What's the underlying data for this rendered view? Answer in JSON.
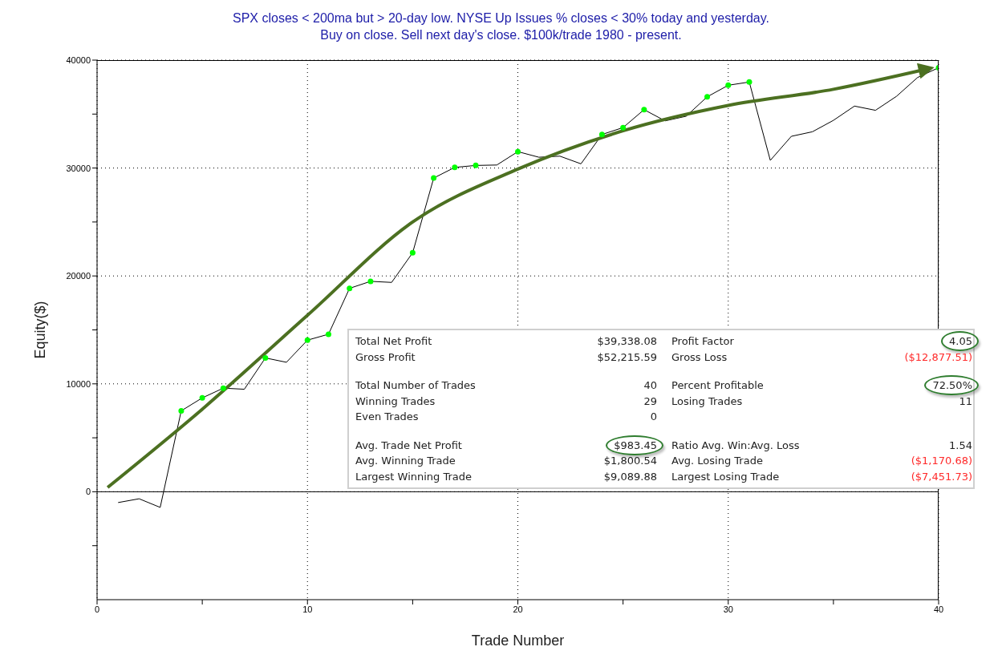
{
  "chart_data": {
    "type": "line",
    "title": "SPX closes < 200ma but > 20-day low. NYSE Up Issues % closes < 30% today and yesterday.",
    "subtitle": "Buy on close. Sell next day's close. $100k/trade 1980 - present.",
    "xlabel": "Trade Number",
    "ylabel": "Equity($)",
    "x": [
      1,
      2,
      3,
      4,
      5,
      6,
      7,
      8,
      9,
      10,
      11,
      12,
      13,
      14,
      15,
      16,
      17,
      18,
      19,
      20,
      21,
      22,
      23,
      24,
      25,
      26,
      27,
      28,
      29,
      30,
      31,
      32,
      33,
      34,
      35,
      36,
      37,
      38,
      39,
      40
    ],
    "series": [
      {
        "type": "line",
        "color": "#000000",
        "marker": "none",
        "values": [
          -1000,
          -650,
          -1450,
          7500,
          8700,
          9600,
          9500,
          12400,
          12000,
          14050,
          14600,
          18850,
          19500,
          19400,
          22150,
          29070,
          30060,
          30240,
          30280,
          31520,
          31000,
          31100,
          30390,
          33110,
          33750,
          35410,
          34370,
          34800,
          36600,
          37670,
          37970,
          30710,
          32940,
          33360,
          34420,
          35740,
          35350,
          36650,
          38390,
          39300
        ]
      },
      {
        "type": "scatter",
        "color": "#00ff00",
        "marker": "circle",
        "x": [
          4,
          5,
          6,
          8,
          10,
          11,
          12,
          13,
          15,
          16,
          17,
          18,
          20,
          24,
          25,
          26,
          29,
          30,
          31,
          40
        ],
        "values": [
          7500,
          8700,
          9600,
          12400,
          14050,
          14600,
          18850,
          19500,
          22150,
          29070,
          30060,
          30240,
          31520,
          33110,
          33750,
          35410,
          36600,
          37670,
          37970,
          39300
        ]
      },
      {
        "type": "line",
        "color": "#4c7021",
        "marker": "none",
        "x": [
          0.5,
          5,
          10,
          15,
          20,
          25,
          30,
          35,
          39.5
        ],
        "values": [
          400,
          7650,
          16350,
          25000,
          29900,
          33450,
          35800,
          37300,
          39200
        ]
      }
    ],
    "xlim": [
      0,
      40
    ],
    "xticks": [
      0,
      {
        "value": 5,
        "label": null
      },
      10,
      {
        "value": 15,
        "label": null
      },
      20,
      {
        "value": 25,
        "label": null
      },
      30,
      {
        "value": 35,
        "label": null
      },
      40
    ],
    "ylim": [
      -10000,
      40000
    ],
    "yticks": [
      {
        "value": -5000,
        "label": null
      },
      0,
      {
        "value": 5000,
        "label": null
      },
      10000,
      {
        "value": 15000,
        "label": null
      },
      20000,
      {
        "value": 25000,
        "label": null
      },
      30000,
      {
        "value": 35000,
        "label": null
      },
      40000
    ],
    "grid": true,
    "legend": false,
    "ref_lines": [
      {
        "axis": "y",
        "value": 0,
        "color": "#000000",
        "line_style": "solid"
      }
    ],
    "annotations": [
      "Total Net Profit",
      "$39,338.08",
      "Profit Factor",
      "4.05",
      "Gross Profit",
      "$52,215.59",
      "Gross Loss",
      "($12,877.51)",
      "Total Number of Trades",
      "40",
      "Percent Profitable",
      "72.50%",
      "Winning Trades",
      "29",
      "Losing Trades",
      "11",
      "Even Trades",
      "0",
      "Avg. Trade Net Profit",
      "$983.45",
      "Ratio Avg. Win:Avg. Loss",
      "1.54",
      "Avg. Winning Trade",
      "$1,800.54",
      "Avg. Losing Trade",
      "($1,170.68)",
      "Largest Winning Trade",
      "$9,089.88",
      "Largest Losing Trade",
      "($7,451.73)"
    ]
  }
}
